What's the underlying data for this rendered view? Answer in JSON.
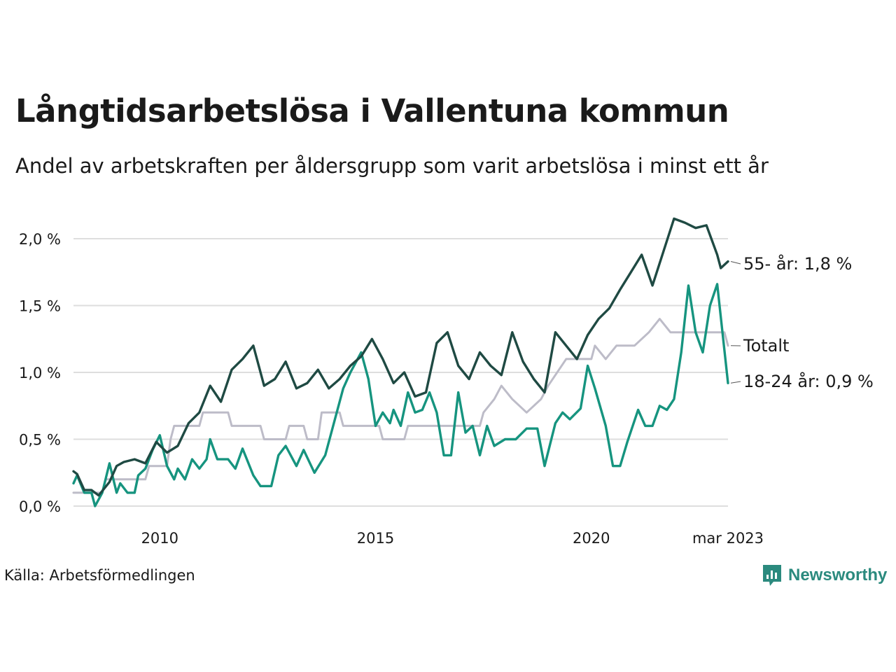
{
  "title": "Långtidsarbetslösa i Vallentuna kommun",
  "subtitle": "Andel av arbetskraften per åldersgrupp som varit arbetslösa i minst ett år",
  "source": "Källa: Arbetsförmedlingen",
  "logo_text": "Newsworthy",
  "logo_icon": "newsworthy-logo-icon",
  "colors": {
    "older": "#1f4a43",
    "young": "#16947f",
    "total": "#bdbcc8",
    "grid": "#dedede",
    "logo": "#2b8a7e"
  },
  "chart_data": {
    "type": "line",
    "x_range": [
      "2008-01",
      "2023-03"
    ],
    "ylim": [
      0,
      2.2
    ],
    "y_ticks": [
      0,
      0.5,
      1.0,
      1.5,
      2.0
    ],
    "y_tick_labels": [
      "0,0 %",
      "0,5 %",
      "1,0 %",
      "1,5 %",
      "2,0 %"
    ],
    "x_ticks": [
      "2010-01",
      "2015-01",
      "2020-01",
      "2023-03"
    ],
    "x_tick_labels": [
      "2010",
      "2015",
      "2020",
      "mar 2023"
    ],
    "grid": "horizontal",
    "series": [
      {
        "key": "total",
        "name": "Totalt",
        "end_label": "Totalt",
        "points": [
          [
            "2008-01",
            0.1
          ],
          [
            "2008-09",
            0.1
          ],
          [
            "2008-10",
            0.2
          ],
          [
            "2009-09",
            0.2
          ],
          [
            "2009-10",
            0.3
          ],
          [
            "2010-03",
            0.3
          ],
          [
            "2010-04",
            0.5
          ],
          [
            "2010-05",
            0.6
          ],
          [
            "2010-12",
            0.6
          ],
          [
            "2011-01",
            0.7
          ],
          [
            "2011-08",
            0.7
          ],
          [
            "2011-09",
            0.6
          ],
          [
            "2012-05",
            0.6
          ],
          [
            "2012-06",
            0.5
          ],
          [
            "2012-12",
            0.5
          ],
          [
            "2013-01",
            0.6
          ],
          [
            "2013-05",
            0.6
          ],
          [
            "2013-06",
            0.5
          ],
          [
            "2013-09",
            0.5
          ],
          [
            "2013-10",
            0.7
          ],
          [
            "2014-03",
            0.7
          ],
          [
            "2014-04",
            0.6
          ],
          [
            "2015-02",
            0.6
          ],
          [
            "2015-03",
            0.5
          ],
          [
            "2015-09",
            0.5
          ],
          [
            "2015-10",
            0.6
          ],
          [
            "2017-06",
            0.6
          ],
          [
            "2017-07",
            0.7
          ],
          [
            "2017-10",
            0.8
          ],
          [
            "2017-12",
            0.9
          ],
          [
            "2018-03",
            0.8
          ],
          [
            "2018-07",
            0.7
          ],
          [
            "2018-11",
            0.8
          ],
          [
            "2019-01",
            0.9
          ],
          [
            "2019-06",
            1.1
          ],
          [
            "2020-01",
            1.1
          ],
          [
            "2020-02",
            1.2
          ],
          [
            "2020-05",
            1.1
          ],
          [
            "2020-08",
            1.2
          ],
          [
            "2021-01",
            1.2
          ],
          [
            "2021-05",
            1.3
          ],
          [
            "2021-08",
            1.4
          ],
          [
            "2021-11",
            1.3
          ],
          [
            "2022-03",
            1.3
          ],
          [
            "2023-02",
            1.3
          ],
          [
            "2023-03",
            1.2
          ]
        ]
      },
      {
        "key": "young",
        "name": "18-24 år",
        "end_label": "18-24 år: 0,9 %",
        "points": [
          [
            "2008-01",
            0.17
          ],
          [
            "2008-02",
            0.23
          ],
          [
            "2008-04",
            0.1
          ],
          [
            "2008-06",
            0.1
          ],
          [
            "2008-07",
            0.0
          ],
          [
            "2008-09",
            0.1
          ],
          [
            "2008-11",
            0.32
          ],
          [
            "2009-01",
            0.1
          ],
          [
            "2009-02",
            0.17
          ],
          [
            "2009-04",
            0.1
          ],
          [
            "2009-06",
            0.1
          ],
          [
            "2009-07",
            0.23
          ],
          [
            "2009-09",
            0.28
          ],
          [
            "2009-11",
            0.42
          ],
          [
            "2010-01",
            0.53
          ],
          [
            "2010-03",
            0.3
          ],
          [
            "2010-05",
            0.2
          ],
          [
            "2010-06",
            0.28
          ],
          [
            "2010-08",
            0.2
          ],
          [
            "2010-10",
            0.35
          ],
          [
            "2010-12",
            0.28
          ],
          [
            "2011-02",
            0.35
          ],
          [
            "2011-03",
            0.5
          ],
          [
            "2011-05",
            0.35
          ],
          [
            "2011-08",
            0.35
          ],
          [
            "2011-10",
            0.28
          ],
          [
            "2011-12",
            0.43
          ],
          [
            "2012-03",
            0.23
          ],
          [
            "2012-05",
            0.15
          ],
          [
            "2012-08",
            0.15
          ],
          [
            "2012-10",
            0.38
          ],
          [
            "2012-12",
            0.45
          ],
          [
            "2013-03",
            0.3
          ],
          [
            "2013-05",
            0.42
          ],
          [
            "2013-08",
            0.25
          ],
          [
            "2013-11",
            0.38
          ],
          [
            "2014-01",
            0.58
          ],
          [
            "2014-04",
            0.88
          ],
          [
            "2014-06",
            1.0
          ],
          [
            "2014-09",
            1.15
          ],
          [
            "2014-11",
            0.95
          ],
          [
            "2015-01",
            0.6
          ],
          [
            "2015-03",
            0.7
          ],
          [
            "2015-05",
            0.62
          ],
          [
            "2015-06",
            0.72
          ],
          [
            "2015-08",
            0.6
          ],
          [
            "2015-10",
            0.85
          ],
          [
            "2015-12",
            0.7
          ],
          [
            "2016-02",
            0.72
          ],
          [
            "2016-04",
            0.85
          ],
          [
            "2016-06",
            0.7
          ],
          [
            "2016-08",
            0.38
          ],
          [
            "2016-10",
            0.38
          ],
          [
            "2016-12",
            0.85
          ],
          [
            "2017-02",
            0.55
          ],
          [
            "2017-04",
            0.6
          ],
          [
            "2017-06",
            0.38
          ],
          [
            "2017-08",
            0.6
          ],
          [
            "2017-10",
            0.45
          ],
          [
            "2018-01",
            0.5
          ],
          [
            "2018-04",
            0.5
          ],
          [
            "2018-07",
            0.58
          ],
          [
            "2018-10",
            0.58
          ],
          [
            "2018-12",
            0.3
          ],
          [
            "2019-03",
            0.62
          ],
          [
            "2019-05",
            0.7
          ],
          [
            "2019-07",
            0.65
          ],
          [
            "2019-10",
            0.73
          ],
          [
            "2019-12",
            1.05
          ],
          [
            "2020-02",
            0.88
          ],
          [
            "2020-05",
            0.6
          ],
          [
            "2020-07",
            0.3
          ],
          [
            "2020-09",
            0.3
          ],
          [
            "2020-11",
            0.48
          ],
          [
            "2021-02",
            0.72
          ],
          [
            "2021-04",
            0.6
          ],
          [
            "2021-06",
            0.6
          ],
          [
            "2021-08",
            0.75
          ],
          [
            "2021-10",
            0.72
          ],
          [
            "2021-12",
            0.8
          ],
          [
            "2022-02",
            1.15
          ],
          [
            "2022-04",
            1.65
          ],
          [
            "2022-06",
            1.3
          ],
          [
            "2022-08",
            1.15
          ],
          [
            "2022-10",
            1.5
          ],
          [
            "2022-12",
            1.66
          ],
          [
            "2023-03",
            0.92
          ]
        ]
      },
      {
        "key": "older",
        "name": "55- år",
        "end_label": "55- år: 1,8 %",
        "points": [
          [
            "2008-01",
            0.26
          ],
          [
            "2008-02",
            0.24
          ],
          [
            "2008-04",
            0.12
          ],
          [
            "2008-06",
            0.12
          ],
          [
            "2008-08",
            0.08
          ],
          [
            "2008-11",
            0.18
          ],
          [
            "2009-01",
            0.3
          ],
          [
            "2009-03",
            0.33
          ],
          [
            "2009-06",
            0.35
          ],
          [
            "2009-09",
            0.32
          ],
          [
            "2009-12",
            0.48
          ],
          [
            "2010-03",
            0.4
          ],
          [
            "2010-06",
            0.45
          ],
          [
            "2010-09",
            0.62
          ],
          [
            "2010-12",
            0.7
          ],
          [
            "2011-03",
            0.9
          ],
          [
            "2011-06",
            0.78
          ],
          [
            "2011-09",
            1.02
          ],
          [
            "2011-12",
            1.1
          ],
          [
            "2012-03",
            1.2
          ],
          [
            "2012-06",
            0.9
          ],
          [
            "2012-09",
            0.95
          ],
          [
            "2012-12",
            1.08
          ],
          [
            "2013-03",
            0.88
          ],
          [
            "2013-06",
            0.92
          ],
          [
            "2013-09",
            1.02
          ],
          [
            "2013-12",
            0.88
          ],
          [
            "2014-03",
            0.95
          ],
          [
            "2014-06",
            1.05
          ],
          [
            "2014-09",
            1.12
          ],
          [
            "2014-12",
            1.25
          ],
          [
            "2015-03",
            1.1
          ],
          [
            "2015-06",
            0.92
          ],
          [
            "2015-09",
            1.0
          ],
          [
            "2015-12",
            0.82
          ],
          [
            "2016-03",
            0.85
          ],
          [
            "2016-06",
            1.22
          ],
          [
            "2016-09",
            1.3
          ],
          [
            "2016-12",
            1.05
          ],
          [
            "2017-03",
            0.95
          ],
          [
            "2017-06",
            1.15
          ],
          [
            "2017-09",
            1.05
          ],
          [
            "2017-12",
            0.98
          ],
          [
            "2018-03",
            1.3
          ],
          [
            "2018-06",
            1.08
          ],
          [
            "2018-09",
            0.95
          ],
          [
            "2018-12",
            0.85
          ],
          [
            "2019-03",
            1.3
          ],
          [
            "2019-06",
            1.2
          ],
          [
            "2019-09",
            1.1
          ],
          [
            "2019-12",
            1.28
          ],
          [
            "2020-03",
            1.4
          ],
          [
            "2020-06",
            1.48
          ],
          [
            "2020-09",
            1.62
          ],
          [
            "2020-12",
            1.75
          ],
          [
            "2021-03",
            1.88
          ],
          [
            "2021-06",
            1.65
          ],
          [
            "2021-09",
            1.9
          ],
          [
            "2021-12",
            2.15
          ],
          [
            "2022-03",
            2.12
          ],
          [
            "2022-06",
            2.08
          ],
          [
            "2022-09",
            2.1
          ],
          [
            "2022-12",
            1.88
          ],
          [
            "2023-01",
            1.78
          ],
          [
            "2023-03",
            1.83
          ]
        ]
      }
    ]
  }
}
